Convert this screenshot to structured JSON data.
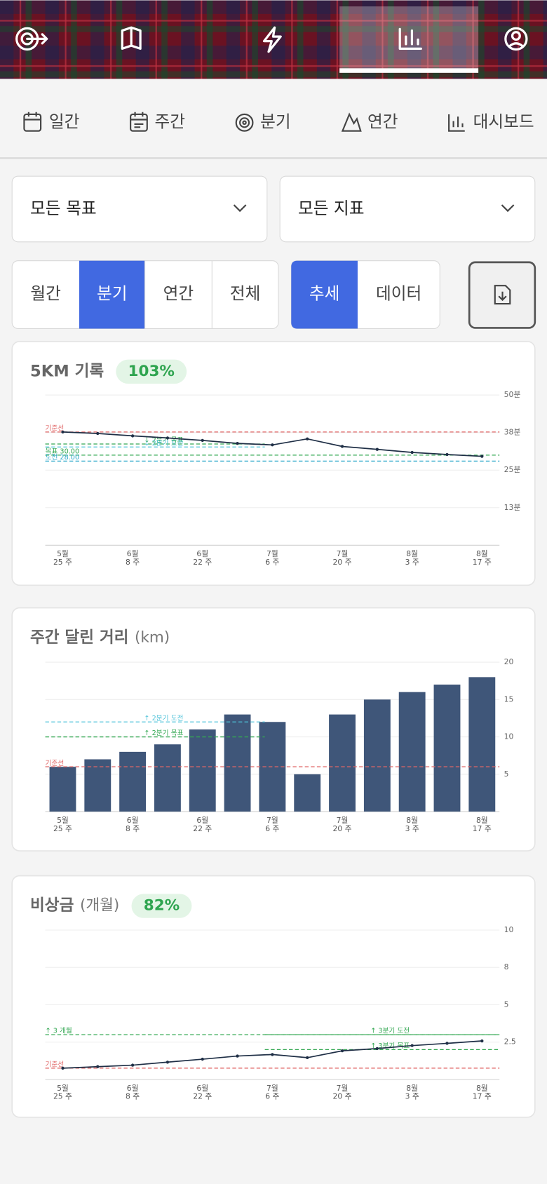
{
  "period_tabs": [
    "일간",
    "주간",
    "분기",
    "연간",
    "대시보드"
  ],
  "filters": [
    "모든 목표",
    "모든 지표"
  ],
  "range_segments": [
    "월간",
    "분기",
    "연간",
    "전체"
  ],
  "range_selected": 1,
  "view_segments": [
    "추세",
    "데이터"
  ],
  "view_selected": 0,
  "chart_data": [
    {
      "type": "line",
      "title": "5KM 기록",
      "badge": "103%",
      "categories": [
        [
          "5월",
          "25 주"
        ],
        null,
        [
          "6월",
          "8 주"
        ],
        null,
        [
          "6월",
          "22 주"
        ],
        null,
        [
          "7월",
          "6 주"
        ],
        null,
        [
          "7월",
          "20 주"
        ],
        null,
        [
          "8월",
          "3 주"
        ],
        null,
        [
          "8월",
          "17 주"
        ]
      ],
      "values": [
        37.7,
        37.2,
        36.4,
        35.7,
        34.9,
        33.9,
        33.4,
        35.4,
        32.9,
        31.9,
        30.9,
        30.2,
        29.6
      ],
      "color": "#1f2f46",
      "ylim": [
        0,
        50
      ],
      "yticks": [
        {
          "value": 12.5,
          "label": "13분"
        },
        {
          "value": 25,
          "label": "25분"
        },
        {
          "value": 37.5,
          "label": "38분"
        },
        {
          "value": 50,
          "label": "50분"
        }
      ],
      "grid": true,
      "reference_lines": [
        {
          "label": "기준선",
          "value": 37.7,
          "color": "#e06666",
          "side": "full"
        },
        {
          "label": "↓ 2분기 목표",
          "value": 33.7,
          "color": "#34a853",
          "side": "left"
        },
        {
          "label": "↓ 2분기 도전",
          "value": 32.7,
          "color": "#4fc3d9",
          "side": "left"
        },
        {
          "label": "목표 30.00",
          "value": 30,
          "color": "#34a853",
          "side": "full"
        },
        {
          "label": "도전 28.00",
          "value": 28,
          "color": "#2aa7c9",
          "side": "full"
        }
      ]
    },
    {
      "type": "bar",
      "title": "주간 달린 거리",
      "unit": "(km)",
      "categories": [
        [
          "5월",
          "25 주"
        ],
        null,
        [
          "6월",
          "8 주"
        ],
        null,
        [
          "6월",
          "22 주"
        ],
        null,
        [
          "7월",
          "6 주"
        ],
        null,
        [
          "7월",
          "20 주"
        ],
        null,
        [
          "8월",
          "3 주"
        ],
        null,
        [
          "8월",
          "17 주"
        ]
      ],
      "values": [
        6,
        7,
        8,
        9,
        11,
        13,
        12,
        5,
        13,
        15,
        16,
        17,
        18
      ],
      "color": "#3f5679",
      "ylim": [
        0,
        20
      ],
      "yticks": [
        5,
        10,
        15,
        20
      ],
      "grid": true,
      "reference_lines": [
        {
          "label": "↑ 2분기 도전",
          "value": 12,
          "color": "#4fc3d9",
          "side": "left"
        },
        {
          "label": "↑ 2분기 목표",
          "value": 10,
          "color": "#34a853",
          "side": "left"
        },
        {
          "label": "기준선",
          "value": 6,
          "color": "#e06666",
          "side": "full"
        }
      ]
    },
    {
      "type": "line",
      "title": "비상금",
      "unit": "(개월)",
      "badge": "82%",
      "categories": [
        [
          "5월",
          "25 주"
        ],
        null,
        [
          "6월",
          "8 주"
        ],
        null,
        [
          "6월",
          "22 주"
        ],
        null,
        [
          "7월",
          "6 주"
        ],
        null,
        [
          "7월",
          "20 주"
        ],
        null,
        [
          "8월",
          "3 주"
        ],
        null,
        [
          "8월",
          "17 주"
        ]
      ],
      "values": [
        0.76,
        0.86,
        0.96,
        1.16,
        1.36,
        1.57,
        1.67,
        1.46,
        1.92,
        2.07,
        2.27,
        2.42,
        2.58
      ],
      "color": "#1f2f46",
      "ylim": [
        0,
        10
      ],
      "yticks": [
        2.5,
        5,
        {
          "value": 7.5,
          "label": "8"
        },
        10
      ],
      "grid": true,
      "reference_lines": [
        {
          "label": "↑ 3 개월",
          "value": 3,
          "color": "#34a853",
          "side": "full"
        },
        {
          "label": "↑ 3분기 도전",
          "value": 3,
          "color": "#34a853",
          "side": "right"
        },
        {
          "label": "↑ 3분기 목표",
          "value": 2,
          "color": "#34a853",
          "side": "right"
        },
        {
          "label": "기준선",
          "value": 0.76,
          "color": "#e06666",
          "side": "full"
        }
      ]
    }
  ]
}
